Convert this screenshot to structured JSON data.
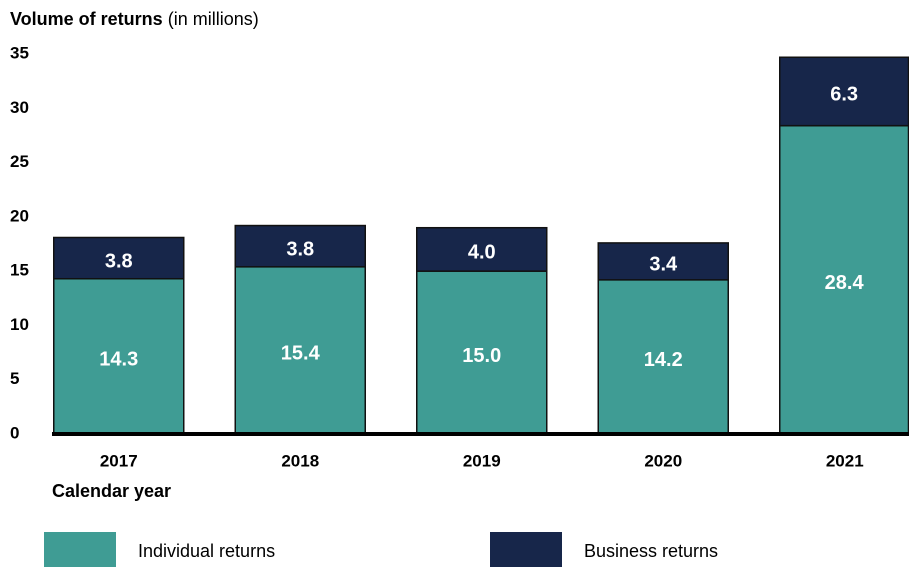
{
  "chart_data": {
    "type": "stacked_bar",
    "ylabel": "Volume of returns",
    "ylabel_unit": "(in millions)",
    "xlabel": "Calendar year",
    "categories": [
      "2017",
      "2018",
      "2019",
      "2020",
      "2021"
    ],
    "series": [
      {
        "name": "Individual returns",
        "color": "#3f9c94",
        "values": [
          14.3,
          15.4,
          15.0,
          14.2,
          28.4
        ],
        "value_labels": [
          "14.3",
          "15.4",
          "15.0",
          "14.2",
          "28.4"
        ]
      },
      {
        "name": "Business returns",
        "color": "#17264a",
        "values": [
          3.8,
          3.8,
          4.0,
          3.4,
          6.3
        ],
        "value_labels": [
          "3.8",
          "3.8",
          "4.0",
          "3.4",
          "6.3"
        ]
      }
    ],
    "ylim": [
      0,
      35
    ],
    "yticks": [
      0,
      5,
      10,
      15,
      20,
      25,
      30,
      35
    ],
    "grid": false,
    "legend": "bottom"
  }
}
